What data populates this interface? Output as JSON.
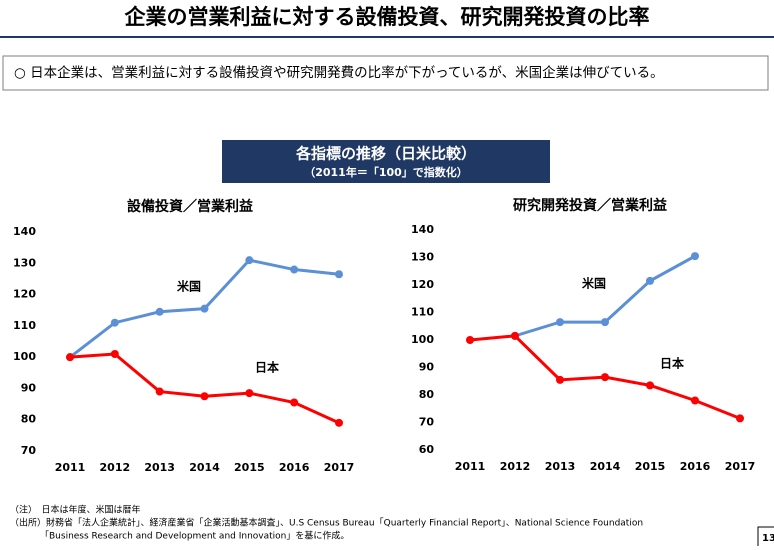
{
  "header": {
    "title": "企業の営業利益に対する設備投資、研究開発投資の比率"
  },
  "summary": "○ 日本企業は、営業利益に対する設備投資や研究開発費の比率が下がっているが、米国企業は伸びている。",
  "banner": {
    "title": "各指標の推移（日米比較）",
    "subtitle": "（2011年＝「100」で指数化）"
  },
  "chart_data": [
    {
      "type": "line",
      "title": "設備投資／営業利益",
      "categories": [
        "2011",
        "2012",
        "2013",
        "2014",
        "2015",
        "2016",
        "2017"
      ],
      "ylim": [
        70,
        140
      ],
      "yticks": [
        70,
        80,
        90,
        100,
        110,
        120,
        130,
        140
      ],
      "series": [
        {
          "name": "米国",
          "color": "#5b8fd6",
          "values": [
            100,
            111,
            114.5,
            115.5,
            131,
            128,
            126.5
          ]
        },
        {
          "name": "日本",
          "color": "#ff0000",
          "values": [
            100,
            101,
            89,
            87.5,
            88.5,
            85.5,
            79
          ]
        }
      ]
    },
    {
      "type": "line",
      "title": "研究開発投資／営業利益",
      "categories": [
        "2011",
        "2012",
        "2013",
        "2014",
        "2015",
        "2016",
        "2017"
      ],
      "ylim": [
        60,
        140
      ],
      "yticks": [
        60,
        70,
        80,
        90,
        100,
        110,
        120,
        130,
        140
      ],
      "series": [
        {
          "name": "米国",
          "color": "#5b8fd6",
          "values": [
            null,
            101.5,
            106.5,
            106.5,
            121.5,
            130.5,
            null
          ]
        },
        {
          "name": "日本",
          "color": "#ff0000",
          "values": [
            100,
            101.5,
            85.5,
            86.5,
            83.5,
            78,
            71.5
          ]
        }
      ]
    }
  ],
  "notes": [
    "（注）　日本は年度、米国は暦年",
    "（出所）財務省「法人企業統計」、経済産業省「企業活動基本調査」、U.S Census Bureau「Quarterly Financial Report」、National Science Foundation",
    "「Business Research and Development and Innovation」を基に作成。"
  ],
  "page_number": "13"
}
